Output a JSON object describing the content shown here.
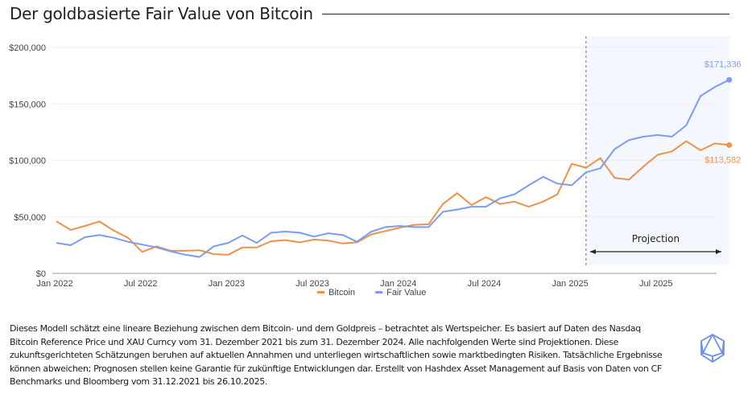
{
  "header": {
    "title": "Der goldbasierte Fair Value von Bitcoin"
  },
  "chart_data": {
    "type": "line",
    "title": "Der goldbasierte Fair Value von Bitcoin",
    "xlabel": "",
    "ylabel": "",
    "ylim": [
      0,
      200000
    ],
    "yticks": [
      0,
      50000,
      100000,
      150000,
      200000
    ],
    "ytick_labels": [
      "$0",
      "$50,000",
      "$100,000",
      "$150,000",
      "$200,000"
    ],
    "x_start": "Jan 2022",
    "x_frequency": "monthly",
    "xtick_labels": [
      "Jan 2022",
      "Jul 2022",
      "Jan 2023",
      "Jul 2023",
      "Jan 2024",
      "Jul 2024",
      "Jan 2025",
      "Jul 2025"
    ],
    "xtick_month_index": [
      0,
      6,
      12,
      18,
      24,
      30,
      36,
      42
    ],
    "grid": true,
    "legend": "bottom",
    "series": [
      {
        "name": "Bitcoin",
        "color": "#f0914a",
        "values": [
          46000,
          38500,
          42000,
          46000,
          38000,
          31500,
          19000,
          24000,
          20000,
          20000,
          20500,
          17000,
          16500,
          23000,
          23000,
          28500,
          29500,
          27500,
          30000,
          29000,
          26500,
          27500,
          34500,
          37500,
          40500,
          43000,
          43500,
          61500,
          71000,
          60500,
          67500,
          61500,
          63500,
          59000,
          63500,
          70000,
          97000,
          93500,
          102000,
          84500,
          83000,
          94500,
          105000,
          108000,
          117000,
          109000,
          115000,
          113582
        ]
      },
      {
        "name": "Fair Value",
        "color": "#7b9cf2",
        "values": [
          27000,
          25000,
          32000,
          34000,
          31500,
          28000,
          25500,
          23000,
          19500,
          16500,
          14500,
          24000,
          27000,
          33500,
          27000,
          36000,
          37000,
          36000,
          32500,
          35500,
          34000,
          28000,
          37000,
          41000,
          42000,
          41000,
          41000,
          54500,
          56500,
          59000,
          59000,
          66500,
          70000,
          78000,
          85500,
          79500,
          78000,
          89500,
          93000,
          110000,
          118000,
          121000,
          122500,
          121000,
          131000,
          157000,
          165000,
          171336
        ]
      }
    ],
    "projection": {
      "label": "Projection",
      "start": "Jan 2025",
      "start_month_index": 37
    },
    "annotations": [
      {
        "series": "Fair Value",
        "label": "$171,336",
        "value": 171336
      },
      {
        "series": "Bitcoin",
        "label": "$113,582",
        "value": 113582
      }
    ]
  },
  "footnote": {
    "text": "Dieses Modell schätzt eine lineare Beziehung zwischen dem Bitcoin- und dem Goldpreis – betrachtet als Wertspeicher. Es basiert auf Daten des Nasdaq Bitcoin Reference Price und XAU Curncy vom 31. Dezember 2021 bis zum 31. Dezember 2024. Alle nachfolgenden Werte sind Projektionen. Diese zukunftsgerichteten Schätzungen beruhen auf aktuellen Annahmen und unterliegen wirtschaftlichen sowie marktbedingten Risiken. Tatsächliche Ergebnisse können abweichen; Prognosen stellen keine Garantie für zukünftige Entwicklungen dar. Erstellt von Hashdex Asset Management auf Basis von Daten von CF Benchmarks und Bloomberg vom 31.12.2021 bis 26.10.2025."
  },
  "logo": {
    "icon": "hashdex-polyhedron-icon",
    "color": "#6b8ef0"
  },
  "colors": {
    "projection_bg": "#f4f8fe",
    "grid": "#eeeeee",
    "axis": "#999999"
  }
}
